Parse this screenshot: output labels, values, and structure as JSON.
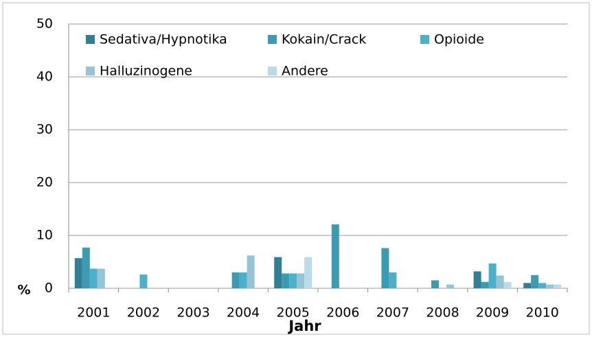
{
  "chart_data": {
    "type": "bar",
    "categories": [
      "2001",
      "2002",
      "2003",
      "2004",
      "2005",
      "2006",
      "2007",
      "2008",
      "2009",
      "2010"
    ],
    "series": [
      {
        "name": "Sedativa/Hypnotika",
        "color": "#2f7f96",
        "values": [
          5.7,
          0,
          0,
          0,
          5.9,
          0,
          0,
          0,
          3.2,
          1.0
        ]
      },
      {
        "name": "Kokain/Crack",
        "color": "#3b9bb1",
        "values": [
          7.7,
          0,
          0,
          3.0,
          2.8,
          12.1,
          7.6,
          1.5,
          1.2,
          2.5
        ]
      },
      {
        "name": "Opioide",
        "color": "#4bb0cc",
        "values": [
          3.7,
          2.6,
          0,
          3.0,
          2.8,
          0,
          3.0,
          0,
          4.7,
          1.0
        ]
      },
      {
        "name": "Halluzinogene",
        "color": "#93c5d7",
        "values": [
          3.7,
          0,
          0,
          6.2,
          2.8,
          0,
          0,
          0.7,
          2.4,
          0.7
        ]
      },
      {
        "name": "Andere",
        "color": "#b9dce8",
        "values": [
          0,
          0,
          0,
          0,
          5.9,
          0,
          0,
          0,
          1.2,
          0.7
        ]
      }
    ],
    "xlabel": "Jahr",
    "ylabel": "%",
    "ylim": [
      0,
      50
    ],
    "yticks": [
      0,
      10,
      20,
      30,
      40,
      50
    ],
    "grid": true
  }
}
